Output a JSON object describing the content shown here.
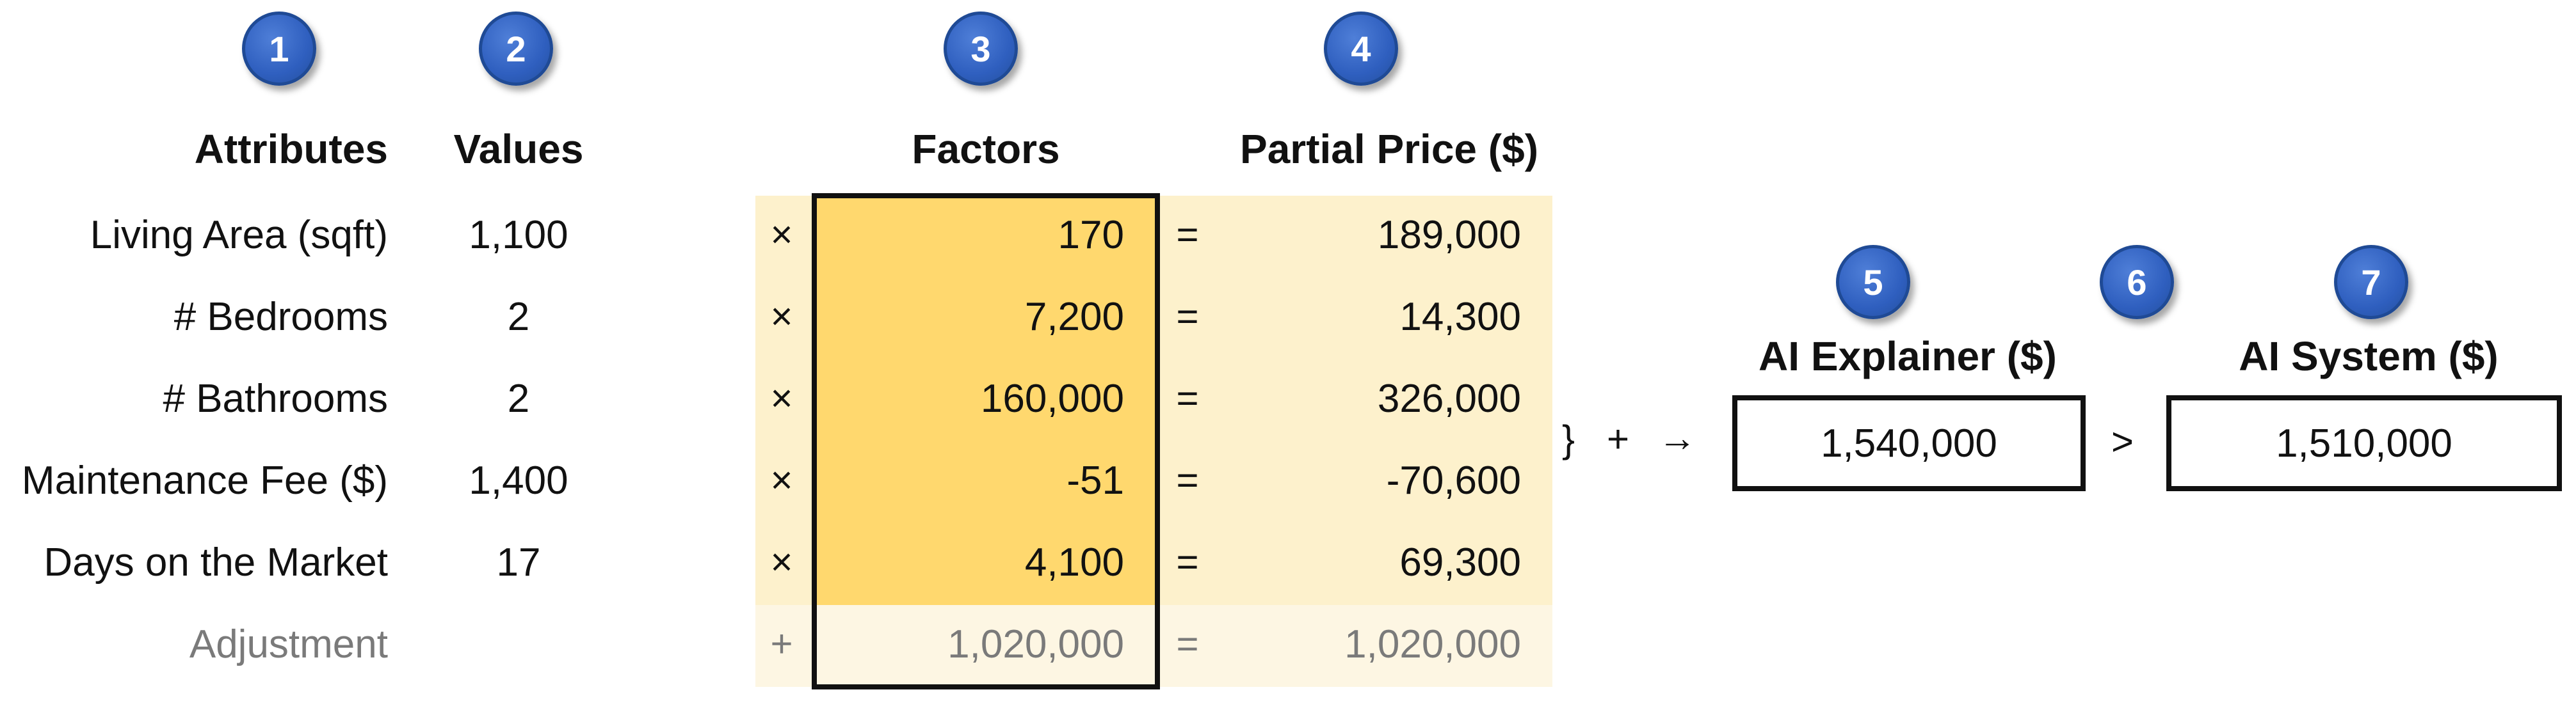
{
  "badges": [
    "1",
    "2",
    "3",
    "4",
    "5",
    "6",
    "7"
  ],
  "headers": {
    "attributes": "Attributes",
    "values": "Values",
    "factors": "Factors",
    "partial_price": "Partial Price ($)",
    "explainer": "AI Explainer ($)",
    "system": "AI System ($)"
  },
  "rows": [
    {
      "attribute": "Living Area (sqft)",
      "value": "1,100",
      "op": "×",
      "factor": "170",
      "eq": "=",
      "partial": "189,000"
    },
    {
      "attribute": "# Bedrooms",
      "value": "2",
      "op": "×",
      "factor": "7,200",
      "eq": "=",
      "partial": "14,300"
    },
    {
      "attribute": "# Bathrooms",
      "value": "2",
      "op": "×",
      "factor": "160,000",
      "eq": "=",
      "partial": "326,000"
    },
    {
      "attribute": "Maintenance Fee ($)",
      "value": "1,400",
      "op": "×",
      "factor": "-51",
      "eq": "=",
      "partial": "-70,600"
    },
    {
      "attribute": "Days on the Market",
      "value": "17",
      "op": "×",
      "factor": "4,100",
      "eq": "=",
      "partial": "69,300"
    }
  ],
  "adjustment": {
    "attribute": "Adjustment",
    "op": "+",
    "factor": "1,020,000",
    "eq": "=",
    "partial": "1,020,000"
  },
  "sum_symbols": {
    "brace": "}",
    "plus": "+",
    "arrow": "→"
  },
  "comparison": ">",
  "explainer_value": "1,540,000",
  "system_value": "1,510,000",
  "colors": {
    "badge": "#2f5fbf",
    "factor_fill": "#ffd86e",
    "band": "#fdf1cc",
    "adjustment_band": "#fdf6e3"
  }
}
